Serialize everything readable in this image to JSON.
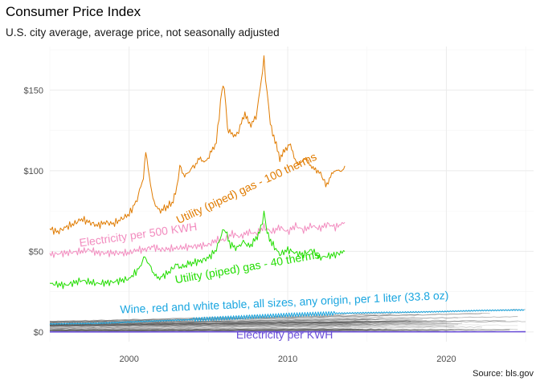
{
  "chart_data": {
    "type": "line",
    "title": "Consumer Price Index",
    "subtitle": "U.S. city average, average price, not seasonally adjusted",
    "caption": "Source: bls.gov",
    "xlabel": "",
    "ylabel": "",
    "xlim": [
      1995.0,
      2025.5
    ],
    "ylim": [
      -6,
      177
    ],
    "x_ticks": [
      2000,
      2010,
      2020
    ],
    "x_tick_labels": [
      "2000",
      "2010",
      "2020"
    ],
    "y_ticks": [
      0,
      50,
      100,
      150
    ],
    "y_tick_labels": [
      "$0",
      "$50",
      "$100",
      "$150"
    ],
    "grid": true,
    "legend": "none",
    "colors": {
      "gas100": "#e07b00",
      "electricity500": "#f28cbf",
      "gas40": "#22dd00",
      "wine": "#1aa6e0",
      "kwh": "#6b4fd8",
      "background_series": "#555555"
    },
    "series": [
      {
        "name": "Utility (piped) gas - 100 therms",
        "color": "#e07b00",
        "points": [
          [
            1995.0,
            64
          ],
          [
            1995.5,
            62
          ],
          [
            1996.0,
            65
          ],
          [
            1996.5,
            67
          ],
          [
            1997.0,
            70
          ],
          [
            1997.5,
            68
          ],
          [
            1998.0,
            66
          ],
          [
            1998.5,
            68
          ],
          [
            1999.0,
            67
          ],
          [
            1999.5,
            70
          ],
          [
            2000.0,
            73
          ],
          [
            2000.5,
            82
          ],
          [
            2000.9,
            96
          ],
          [
            2001.05,
            111
          ],
          [
            2001.2,
            102
          ],
          [
            2001.5,
            82
          ],
          [
            2001.9,
            75
          ],
          [
            2002.3,
            77
          ],
          [
            2002.7,
            80
          ],
          [
            2003.0,
            88
          ],
          [
            2003.2,
            104
          ],
          [
            2003.5,
            96
          ],
          [
            2003.8,
            100
          ],
          [
            2004.2,
            104
          ],
          [
            2004.5,
            108
          ],
          [
            2004.8,
            105
          ],
          [
            2005.2,
            112
          ],
          [
            2005.5,
            118
          ],
          [
            2005.85,
            150
          ],
          [
            2006.0,
            153
          ],
          [
            2006.2,
            126
          ],
          [
            2006.5,
            122
          ],
          [
            2006.8,
            123
          ],
          [
            2007.0,
            127
          ],
          [
            2007.3,
            136
          ],
          [
            2007.6,
            128
          ],
          [
            2008.0,
            133
          ],
          [
            2008.25,
            150
          ],
          [
            2008.5,
            169
          ],
          [
            2008.7,
            148
          ],
          [
            2008.9,
            130
          ],
          [
            2009.2,
            118
          ],
          [
            2009.5,
            108
          ],
          [
            2009.8,
            112
          ],
          [
            2010.1,
            117
          ],
          [
            2010.4,
            109
          ],
          [
            2010.7,
            103
          ],
          [
            2011.0,
            108
          ],
          [
            2011.3,
            106
          ],
          [
            2011.6,
            101
          ],
          [
            2011.9,
            100
          ],
          [
            2012.15,
            97
          ],
          [
            2012.4,
            91
          ],
          [
            2012.7,
            96
          ],
          [
            2013.0,
            101
          ],
          [
            2013.3,
            99
          ],
          [
            2013.6,
            103
          ]
        ]
      },
      {
        "name": "Electricity per 500 KWH",
        "color": "#f28cbf",
        "points": [
          [
            1995.0,
            48
          ],
          [
            1996.0,
            49
          ],
          [
            1997.0,
            50
          ],
          [
            1997.5,
            51
          ],
          [
            1998.0,
            49
          ],
          [
            1999.0,
            49
          ],
          [
            2000.0,
            49
          ],
          [
            2000.5,
            51
          ],
          [
            2001.0,
            51
          ],
          [
            2001.5,
            53
          ],
          [
            2002.0,
            51
          ],
          [
            2003.0,
            52
          ],
          [
            2004.0,
            53
          ],
          [
            2005.0,
            54
          ],
          [
            2005.5,
            57
          ],
          [
            2006.0,
            57
          ],
          [
            2006.5,
            61
          ],
          [
            2007.0,
            59
          ],
          [
            2007.5,
            62
          ],
          [
            2008.0,
            61
          ],
          [
            2008.5,
            65
          ],
          [
            2009.0,
            62
          ],
          [
            2009.5,
            65
          ],
          [
            2010.0,
            62
          ],
          [
            2010.5,
            66
          ],
          [
            2011.0,
            63
          ],
          [
            2011.5,
            66
          ],
          [
            2012.0,
            64
          ],
          [
            2012.5,
            67
          ],
          [
            2013.0,
            65
          ],
          [
            2013.6,
            68
          ]
        ]
      },
      {
        "name": "Utility (piped) gas - 40 therms",
        "color": "#22dd00",
        "points": [
          [
            1995.0,
            30
          ],
          [
            1996.0,
            29
          ],
          [
            1997.0,
            32
          ],
          [
            1998.0,
            30
          ],
          [
            1999.0,
            31
          ],
          [
            2000.0,
            33
          ],
          [
            2000.6,
            39
          ],
          [
            2001.0,
            47
          ],
          [
            2001.3,
            41
          ],
          [
            2001.7,
            34
          ],
          [
            2002.0,
            34
          ],
          [
            2002.5,
            37
          ],
          [
            2003.0,
            42
          ],
          [
            2003.3,
            40
          ],
          [
            2003.7,
            42
          ],
          [
            2004.0,
            43
          ],
          [
            2004.5,
            44
          ],
          [
            2005.0,
            46
          ],
          [
            2005.5,
            51
          ],
          [
            2005.9,
            63
          ],
          [
            2006.1,
            62
          ],
          [
            2006.4,
            54
          ],
          [
            2006.8,
            52
          ],
          [
            2007.2,
            56
          ],
          [
            2007.6,
            53
          ],
          [
            2008.0,
            58
          ],
          [
            2008.3,
            64
          ],
          [
            2008.5,
            74
          ],
          [
            2008.7,
            62
          ],
          [
            2009.0,
            55
          ],
          [
            2009.5,
            48
          ],
          [
            2010.0,
            51
          ],
          [
            2010.5,
            49
          ],
          [
            2011.0,
            48
          ],
          [
            2011.5,
            51
          ],
          [
            2012.0,
            46
          ],
          [
            2012.5,
            47
          ],
          [
            2013.0,
            48
          ],
          [
            2013.6,
            50
          ]
        ]
      },
      {
        "name": "Wine, red and white table, all sizes, any origin, per 1 liter (33.8 oz)",
        "color": "#1aa6e0",
        "points": [
          [
            1995.0,
            5.0
          ],
          [
            1998.0,
            5.4
          ],
          [
            2001.0,
            6.6
          ],
          [
            2004.0,
            7.7
          ],
          [
            2007.0,
            9.1
          ],
          [
            2010.0,
            10.6
          ],
          [
            2013.0,
            11.6
          ],
          [
            2016.0,
            12.1
          ],
          [
            2019.0,
            12.5
          ],
          [
            2022.0,
            13.3
          ],
          [
            2025.0,
            13.7
          ]
        ]
      },
      {
        "name": "Electricity per KWH",
        "color": "#6b4fd8",
        "points": [
          [
            1995.0,
            0.09
          ],
          [
            2000.0,
            0.09
          ],
          [
            2005.0,
            0.1
          ],
          [
            2010.0,
            0.12
          ],
          [
            2015.0,
            0.14
          ],
          [
            2020.0,
            0.14
          ],
          [
            2025.0,
            0.17
          ]
        ]
      }
    ],
    "background_series_count": 60
  }
}
